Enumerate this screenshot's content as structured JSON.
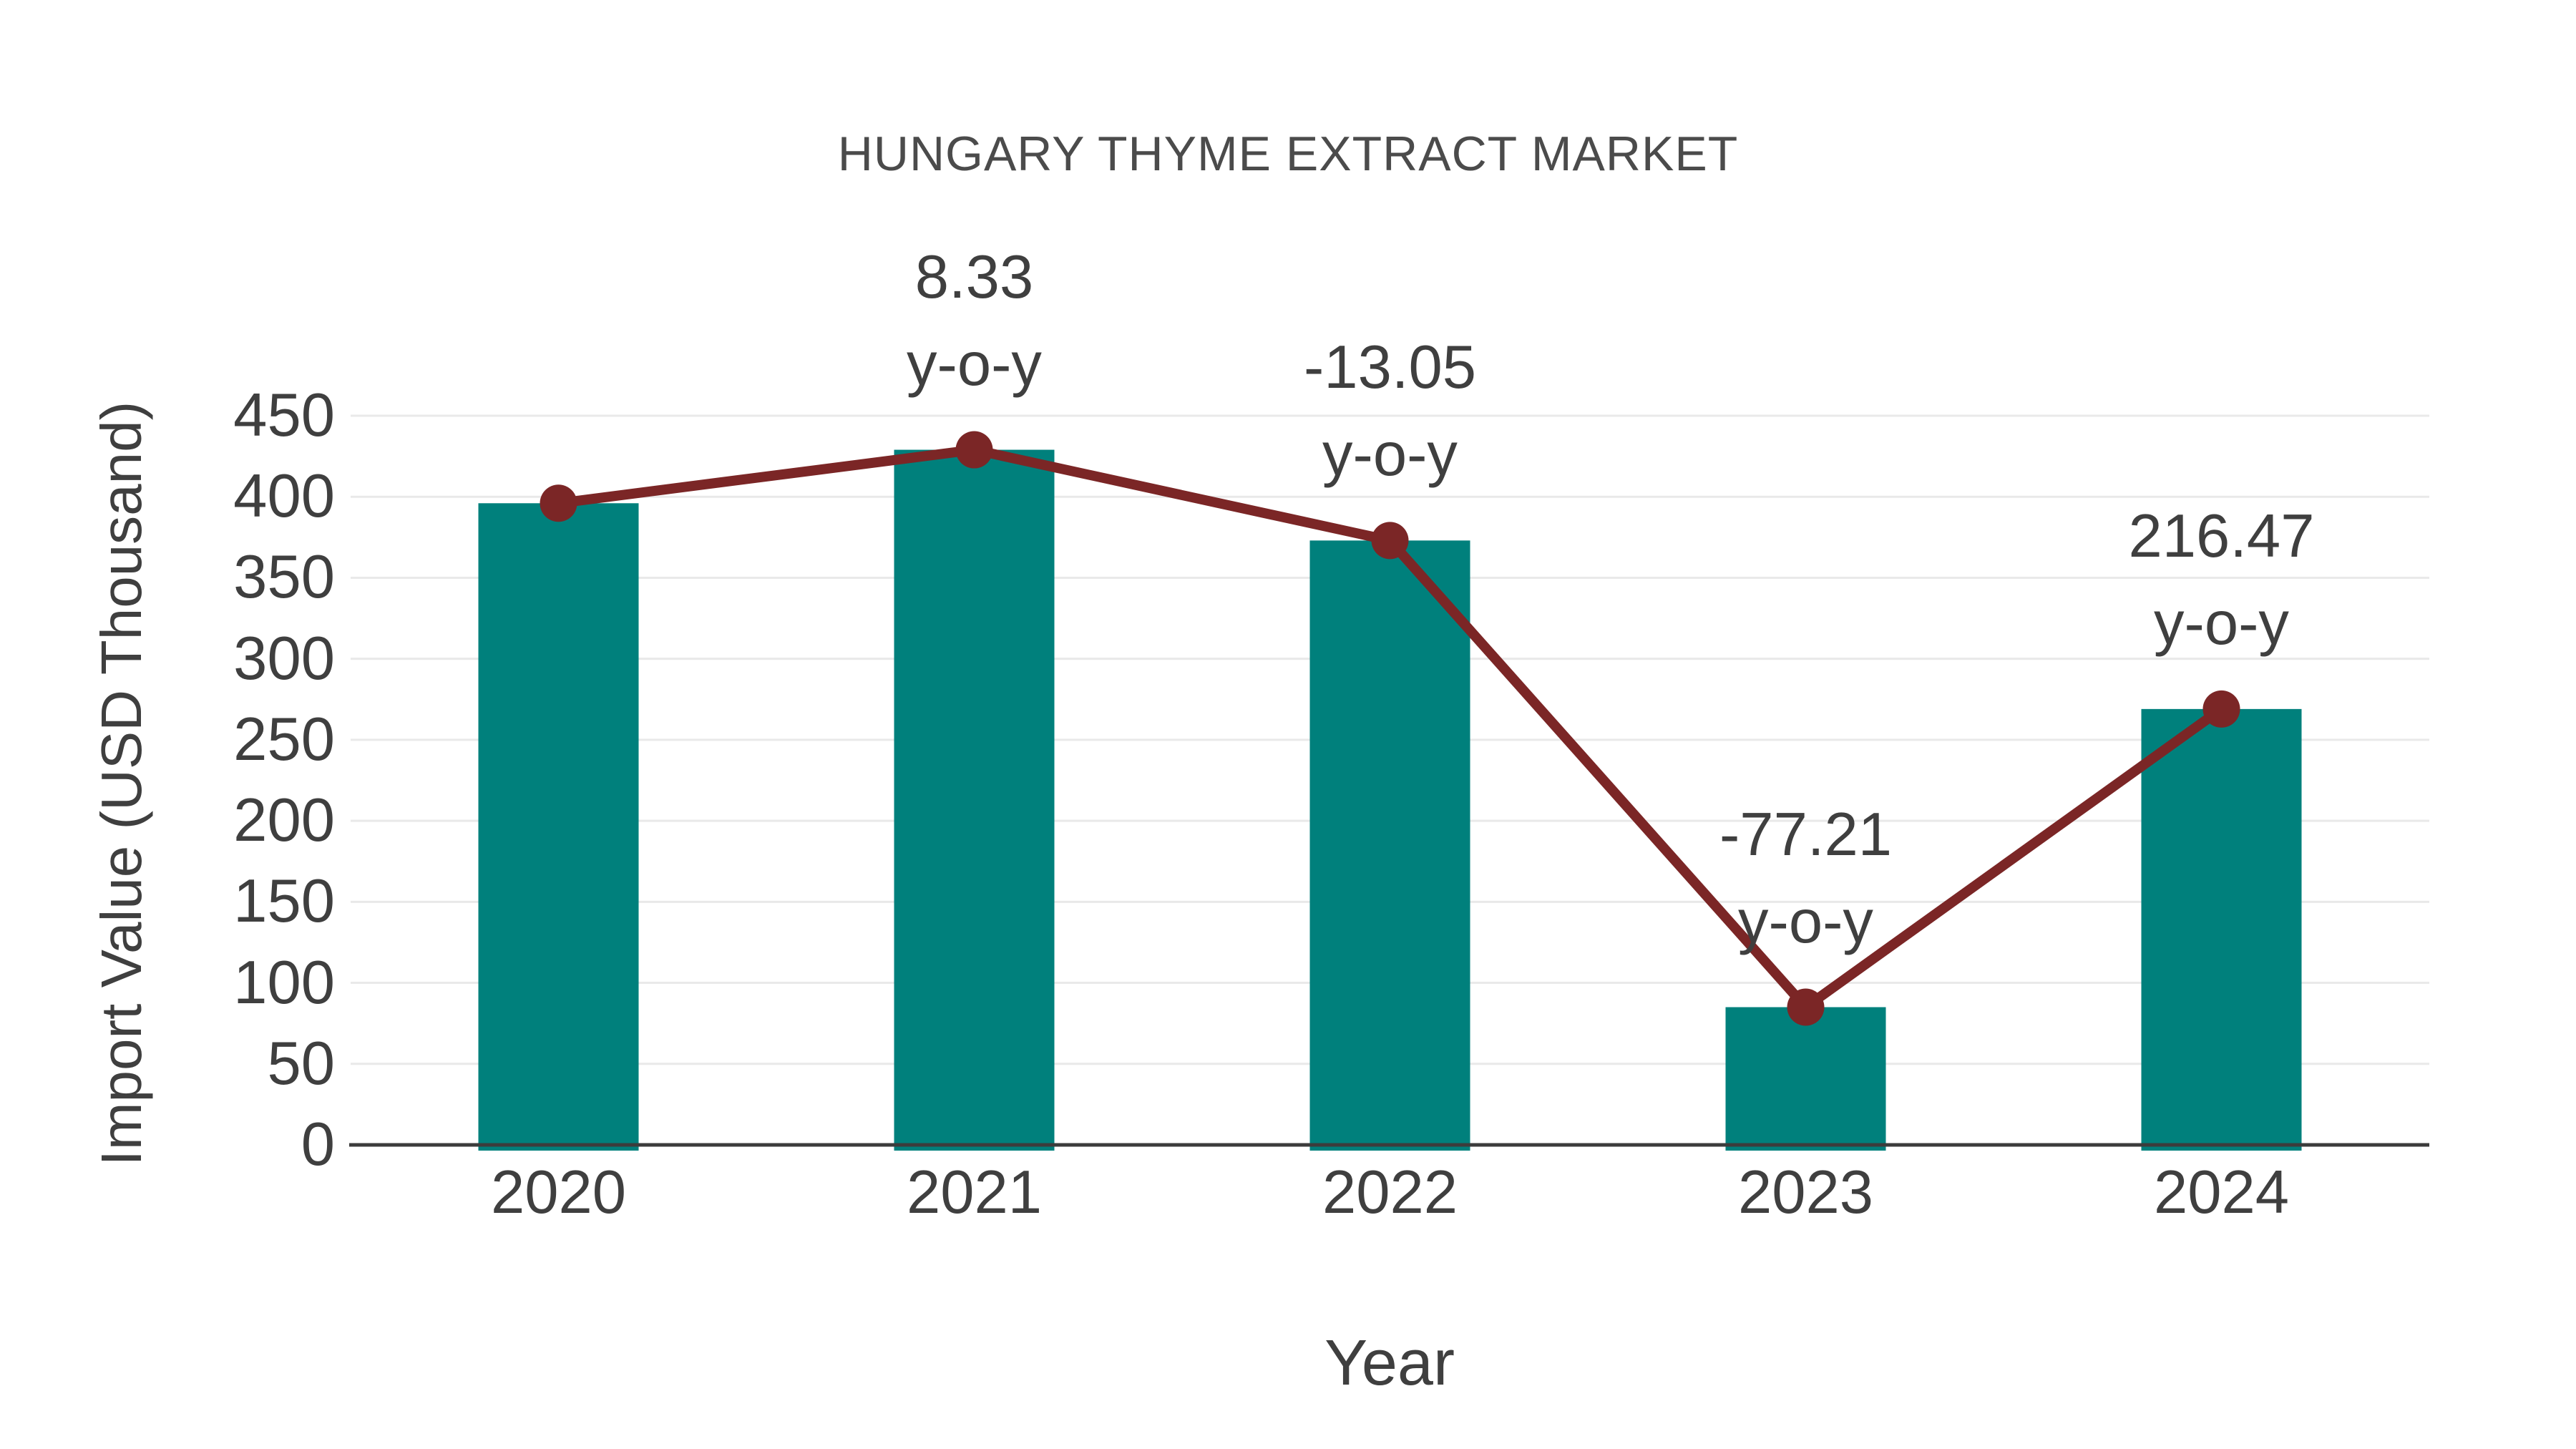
{
  "chart_data": {
    "type": "bar+line",
    "title": "HUNGARY THYME EXTRACT MARKET",
    "xlabel": "Year",
    "ylabel": "Import Value (USD Thousand)",
    "categories": [
      "2020",
      "2021",
      "2022",
      "2023",
      "2024"
    ],
    "series": [
      {
        "name": "Import Value (USD Thousand) bars",
        "type": "bar",
        "values": [
          396,
          429,
          373,
          85,
          269
        ],
        "color": "#00807C"
      },
      {
        "name": "Import Value trend line",
        "type": "line",
        "values": [
          396,
          429,
          373,
          85,
          269
        ],
        "color": "#7B2626"
      }
    ],
    "annotations": [
      {
        "category": "2021",
        "value_label": "8.33",
        "unit_label": "y-o-y"
      },
      {
        "category": "2022",
        "value_label": "-13.05",
        "unit_label": "y-o-y"
      },
      {
        "category": "2023",
        "value_label": "-77.21",
        "unit_label": "y-o-y"
      },
      {
        "category": "2024",
        "value_label": "216.47",
        "unit_label": "y-o-y"
      }
    ],
    "ylim": [
      0,
      450
    ],
    "yticks": [
      0,
      50,
      100,
      150,
      200,
      250,
      300,
      350,
      400,
      450
    ],
    "grid": true,
    "legend_position": "none"
  },
  "colors": {
    "gridline": "#E9E9E9",
    "axis_line": "#3C3C3C",
    "tick_text": "#3F3F3F",
    "title_text": "#4B4B4B",
    "background": "#FFFFFF"
  }
}
